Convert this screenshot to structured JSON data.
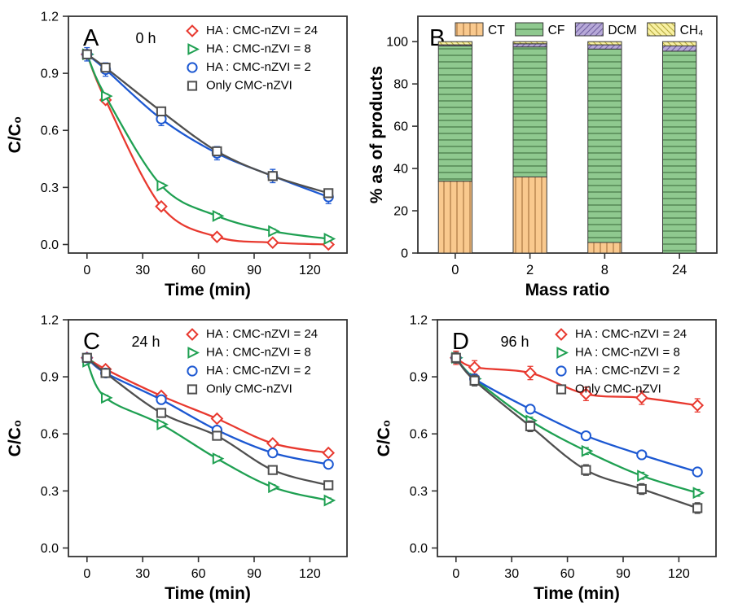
{
  "figure": {
    "background": "#ffffff",
    "axis_color": "#333333"
  },
  "chart_data": [
    {
      "type": "line",
      "panel_label": "A",
      "subtitle": "0 h",
      "xlabel": "Time (min)",
      "ylabel": "C/C₀",
      "xlim": [
        -10,
        140
      ],
      "ylim": [
        -0.045,
        1.2
      ],
      "xticks": [
        0,
        30,
        60,
        90,
        120
      ],
      "xtick_labels": [
        "0",
        "30",
        "60",
        "90",
        "120"
      ],
      "yticks": [
        0.0,
        0.3,
        0.6,
        0.9,
        1.2
      ],
      "ytick_labels": [
        "0.0",
        "0.3",
        "0.6",
        "0.9",
        "1.2"
      ],
      "x": [
        0,
        10,
        40,
        70,
        100,
        130
      ],
      "legend_position": "top-right",
      "series": [
        {
          "name": "HA : CMC-nZVI = 24",
          "color": "#e8392f",
          "marker": "diamond",
          "values": [
            1.0,
            0.76,
            0.2,
            0.04,
            0.01,
            0.0
          ],
          "error": 0.015
        },
        {
          "name": "HA : CMC-nZVI = 8",
          "color": "#1fa052",
          "marker": "triangle-right",
          "values": [
            1.0,
            0.78,
            0.31,
            0.15,
            0.07,
            0.03
          ],
          "error": 0.012
        },
        {
          "name": "HA : CMC-nZVI = 2",
          "color": "#1c58d2",
          "marker": "circle",
          "values": [
            1.0,
            0.92,
            0.66,
            0.48,
            0.36,
            0.25
          ],
          "error": 0.035
        },
        {
          "name": "Only  CMC-nZVI",
          "color": "#4f4f4f",
          "marker": "square",
          "values": [
            1.0,
            0.93,
            0.7,
            0.49,
            0.36,
            0.27
          ],
          "error": 0.022
        }
      ]
    },
    {
      "type": "bar",
      "panel_label": "B",
      "xlabel": "Mass ratio",
      "ylabel": "% as of products",
      "categories": [
        "0",
        "2",
        "8",
        "24"
      ],
      "yticks": [
        0,
        20,
        40,
        60,
        80,
        100
      ],
      "ytick_labels": [
        "0",
        "20",
        "40",
        "60",
        "80",
        "100"
      ],
      "ymax": 112,
      "series": [
        {
          "name": "CT",
          "fill": "#f9c98e",
          "hatch": "vertical",
          "hatch_color": "#a5713a",
          "values": [
            34,
            36,
            5,
            0
          ]
        },
        {
          "name": "CF",
          "fill": "#8fc98f",
          "hatch": "horizontal",
          "hatch_color": "#3f6f3f",
          "values": [
            64,
            61.5,
            91.5,
            95.5
          ]
        },
        {
          "name": "DCM",
          "fill": "#b7a9d8",
          "hatch": "diag-up",
          "hatch_color": "#6f5fa0",
          "values": [
            0.5,
            1.5,
            2,
            2.5
          ]
        },
        {
          "name": "CH₄",
          "fill": "#f8f0a2",
          "hatch": "diag-down",
          "hatch_color": "#b5a83e",
          "values": [
            1.5,
            1,
            1.5,
            2
          ]
        }
      ]
    },
    {
      "type": "line",
      "panel_label": "C",
      "subtitle": "24 h",
      "xlabel": "Time (min)",
      "ylabel": "C/C₀",
      "xlim": [
        -10,
        140
      ],
      "ylim": [
        -0.045,
        1.2
      ],
      "xticks": [
        0,
        30,
        60,
        90,
        120
      ],
      "xtick_labels": [
        "0",
        "30",
        "60",
        "90",
        "120"
      ],
      "yticks": [
        0.0,
        0.3,
        0.6,
        0.9,
        1.2
      ],
      "ytick_labels": [
        "0.0",
        "0.3",
        "0.6",
        "0.9",
        "1.2"
      ],
      "x": [
        0,
        10,
        40,
        70,
        100,
        130
      ],
      "legend_position": "top-right",
      "series": [
        {
          "name": "HA : CMC-nZVI = 24",
          "color": "#e8392f",
          "marker": "diamond",
          "values": [
            1.0,
            0.94,
            0.8,
            0.68,
            0.55,
            0.5
          ],
          "error": 0.015
        },
        {
          "name": "HA : CMC-nZVI = 8",
          "color": "#1fa052",
          "marker": "triangle-right",
          "values": [
            0.98,
            0.79,
            0.65,
            0.47,
            0.32,
            0.25
          ],
          "error": 0.013
        },
        {
          "name": "HA : CMC-nZVI = 2",
          "color": "#1c58d2",
          "marker": "circle",
          "values": [
            1.0,
            0.92,
            0.78,
            0.62,
            0.5,
            0.44
          ],
          "error": 0.015
        },
        {
          "name": "Only  CMC-nZVI",
          "color": "#4f4f4f",
          "marker": "square",
          "values": [
            1.0,
            0.92,
            0.71,
            0.59,
            0.41,
            0.33
          ],
          "error": 0.015
        }
      ]
    },
    {
      "type": "line",
      "panel_label": "D",
      "subtitle": "96 h",
      "xlabel": "Time (min)",
      "ylabel": "C/C₀",
      "xlim": [
        -10,
        140
      ],
      "ylim": [
        -0.045,
        1.2
      ],
      "xticks": [
        0,
        30,
        60,
        90,
        120
      ],
      "xtick_labels": [
        "0",
        "30",
        "60",
        "90",
        "120"
      ],
      "yticks": [
        0.0,
        0.3,
        0.6,
        0.9,
        1.2
      ],
      "ytick_labels": [
        "0.0",
        "0.3",
        "0.6",
        "0.9",
        "1.2"
      ],
      "x": [
        0,
        10,
        40,
        70,
        100,
        130
      ],
      "legend_position": "top-right",
      "series": [
        {
          "name": "HA : CMC-nZVI = 24",
          "color": "#e8392f",
          "marker": "diamond",
          "values": [
            1.0,
            0.95,
            0.92,
            0.81,
            0.79,
            0.75
          ],
          "error": 0.035
        },
        {
          "name": "HA : CMC-nZVI = 8",
          "color": "#1fa052",
          "marker": "triangle-right",
          "values": [
            1.0,
            0.89,
            0.67,
            0.51,
            0.38,
            0.29
          ],
          "error": 0.018
        },
        {
          "name": "HA : CMC-nZVI = 2",
          "color": "#1c58d2",
          "marker": "circle",
          "values": [
            1.0,
            0.89,
            0.73,
            0.59,
            0.49,
            0.4
          ],
          "error": 0.016
        },
        {
          "name": "Only  CMC-nZVI",
          "color": "#4f4f4f",
          "marker": "square",
          "values": [
            1.0,
            0.88,
            0.64,
            0.41,
            0.31,
            0.21
          ],
          "error": 0.028
        }
      ]
    }
  ]
}
